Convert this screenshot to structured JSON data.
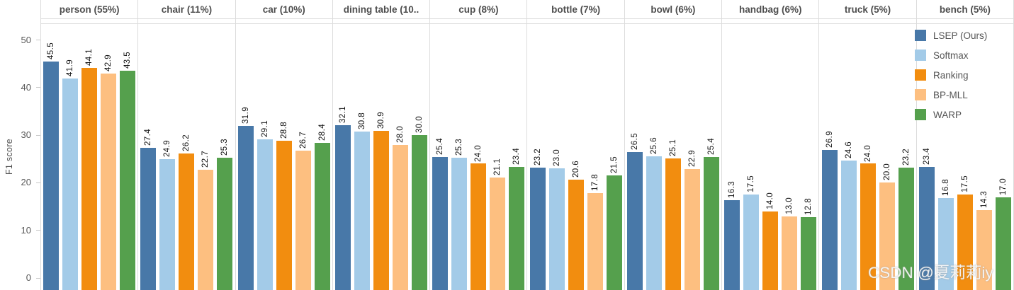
{
  "chart_data": {
    "type": "bar",
    "title": "",
    "xlabel": "",
    "ylabel": "F1 score",
    "yticks": [
      0,
      10,
      20,
      30,
      40,
      50
    ],
    "ylim": [
      0,
      53
    ],
    "grid": false,
    "legend_position": "top-right",
    "series": [
      {
        "name": "LSEP (Ours)",
        "color": "#4878a8"
      },
      {
        "name": "Softmax",
        "color": "#a3cbe8"
      },
      {
        "name": "Ranking",
        "color": "#f28d0f"
      },
      {
        "name": "BP-MLL",
        "color": "#fdbf80"
      },
      {
        "name": "WARP",
        "color": "#55a04d"
      }
    ],
    "panels": [
      {
        "label": "person (55%)",
        "values": [
          45.5,
          41.9,
          44.1,
          42.9,
          43.5
        ]
      },
      {
        "label": "chair (11%)",
        "values": [
          27.4,
          24.9,
          26.2,
          22.7,
          25.3
        ]
      },
      {
        "label": "car (10%)",
        "values": [
          31.9,
          29.1,
          28.8,
          26.7,
          28.4
        ]
      },
      {
        "label": "dining table (10..",
        "values": [
          32.1,
          30.8,
          30.9,
          28.0,
          30.0
        ]
      },
      {
        "label": "cup (8%)",
        "values": [
          25.4,
          25.3,
          24.0,
          21.1,
          23.4
        ]
      },
      {
        "label": "bottle (7%)",
        "values": [
          23.2,
          23.0,
          20.6,
          17.8,
          21.5
        ]
      },
      {
        "label": "bowl (6%)",
        "values": [
          26.5,
          25.6,
          25.1,
          22.9,
          25.4
        ]
      },
      {
        "label": "handbag (6%)",
        "values": [
          16.3,
          17.5,
          14.0,
          13.0,
          12.8
        ]
      },
      {
        "label": "truck (5%)",
        "values": [
          26.9,
          24.6,
          24.0,
          20.0,
          23.2
        ]
      },
      {
        "label": "bench (5%)",
        "values": [
          23.4,
          16.8,
          17.5,
          14.3,
          17.0
        ]
      }
    ]
  },
  "watermark": "CSDN @夏莉莉iy"
}
